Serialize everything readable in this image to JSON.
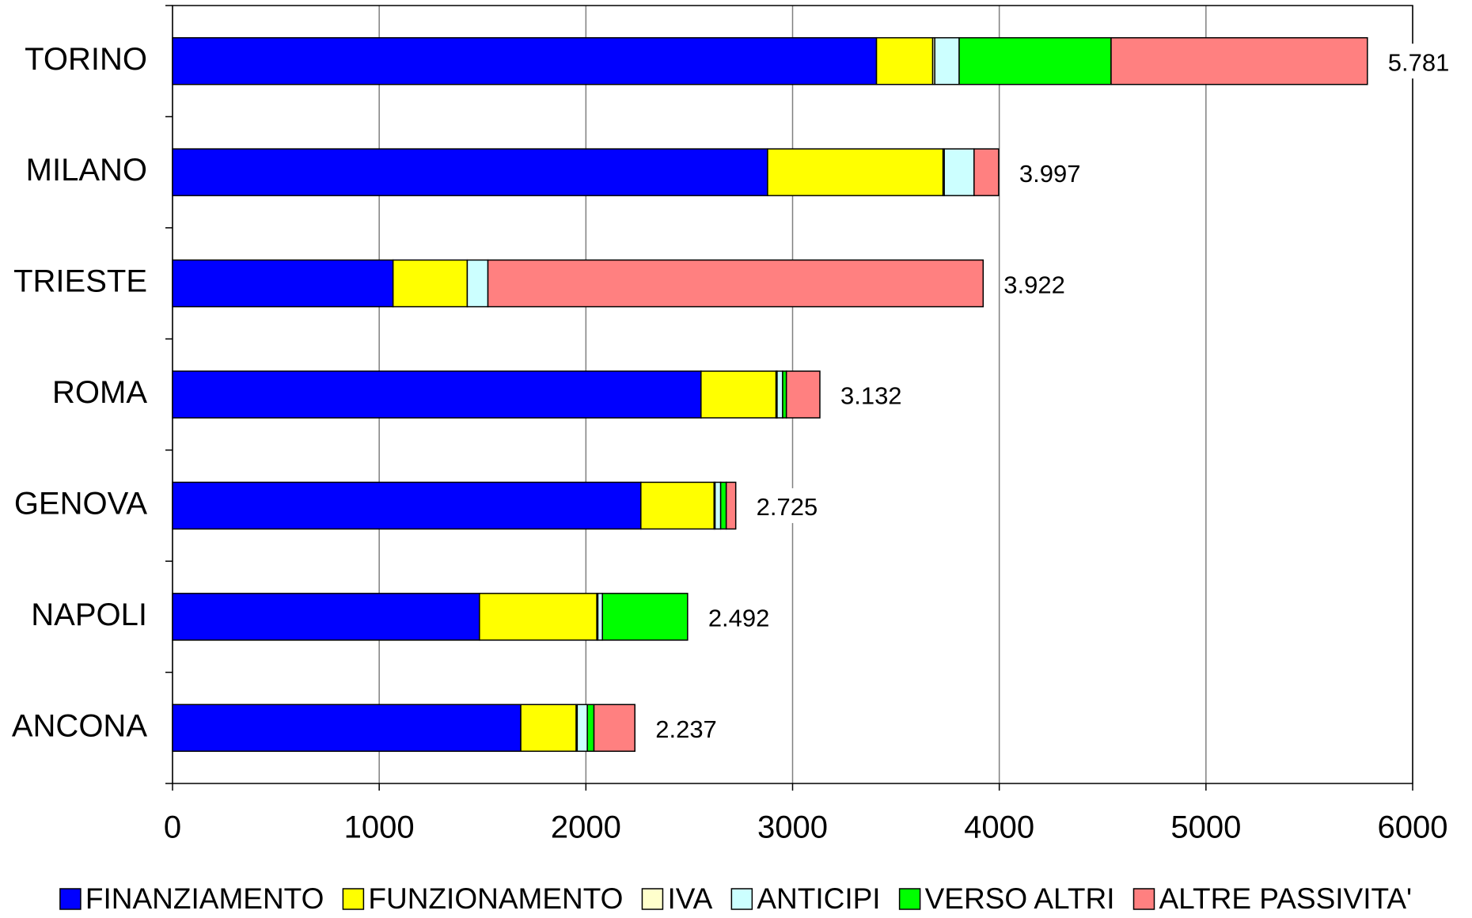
{
  "chart_data": {
    "type": "stacked-bar-horizontal",
    "categories": [
      "TORINO",
      "MILANO",
      "TRIESTE",
      "ROMA",
      "GENOVA",
      "NAPOLI",
      "ANCONA"
    ],
    "series": [
      {
        "name": "FINANZIAMENTO",
        "color": "#0000ff",
        "values": [
          3406,
          2879,
          1067,
          2557,
          2266,
          1485,
          1685
        ]
      },
      {
        "name": "FUNZIONAMENTO",
        "color": "#ffff00",
        "values": [
          272,
          849,
          359,
          363,
          354,
          568,
          268
        ]
      },
      {
        "name": "IVA",
        "color": "#ffffcc",
        "values": [
          10,
          6,
          0,
          5,
          5,
          5,
          5
        ]
      },
      {
        "name": "ANTICIPI",
        "color": "#ccffff",
        "values": [
          118,
          144,
          100,
          27,
          27,
          22,
          49
        ]
      },
      {
        "name": "VERSO ALTRI",
        "color": "#00ff00",
        "values": [
          735,
          0,
          0,
          18,
          27,
          412,
          32
        ]
      },
      {
        "name": "ALTRE PASSIVITA'",
        "color": "#ff8080",
        "values": [
          1240,
          119,
          2396,
          162,
          46,
          0,
          198
        ]
      }
    ],
    "totals": {
      "values": [
        5781,
        3997,
        3922,
        3132,
        2725,
        2492,
        2237
      ],
      "value_labels": [
        "5.781",
        "3.997",
        "3.922",
        "3.132",
        "2.725",
        "2.492",
        "2.237"
      ]
    },
    "xlim": [
      0,
      6000
    ],
    "xticks": [
      0,
      1000,
      2000,
      3000,
      4000,
      5000,
      6000
    ],
    "grid": true
  }
}
